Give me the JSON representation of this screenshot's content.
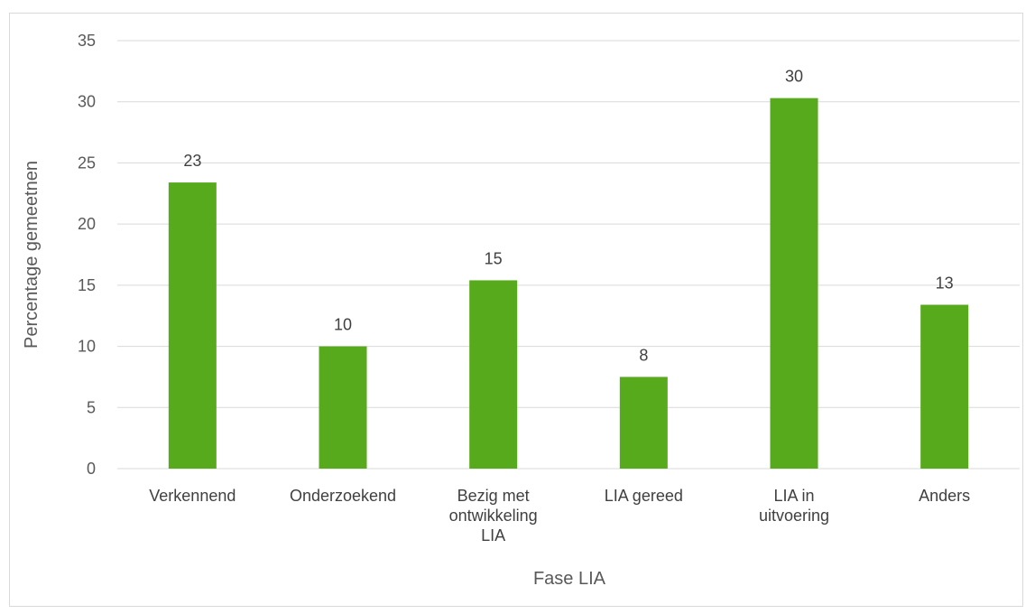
{
  "chart_data": {
    "type": "bar",
    "title": "",
    "xlabel": "Fase LIA",
    "ylabel": "Percentage gemeetnen",
    "categories": [
      [
        "Verkennend"
      ],
      [
        "Onderzoekend"
      ],
      [
        "Bezig met",
        "ontwikkeling",
        "LIA"
      ],
      [
        "LIA gereed"
      ],
      [
        "LIA in",
        "uitvoering"
      ],
      [
        "Anders"
      ]
    ],
    "values": [
      23.4,
      10,
      15.4,
      7.5,
      30.3,
      13.4
    ],
    "data_labels": [
      "23",
      "10",
      "15",
      "8",
      "30",
      "13"
    ],
    "ylim": [
      0,
      35
    ],
    "yticks": [
      0,
      5,
      10,
      15,
      20,
      25,
      30,
      35
    ],
    "grid": true,
    "legend": "none",
    "colors": {
      "bar": "#56aa1c",
      "grid": "#d9d9d9",
      "axis": "#d9d9d9"
    }
  }
}
